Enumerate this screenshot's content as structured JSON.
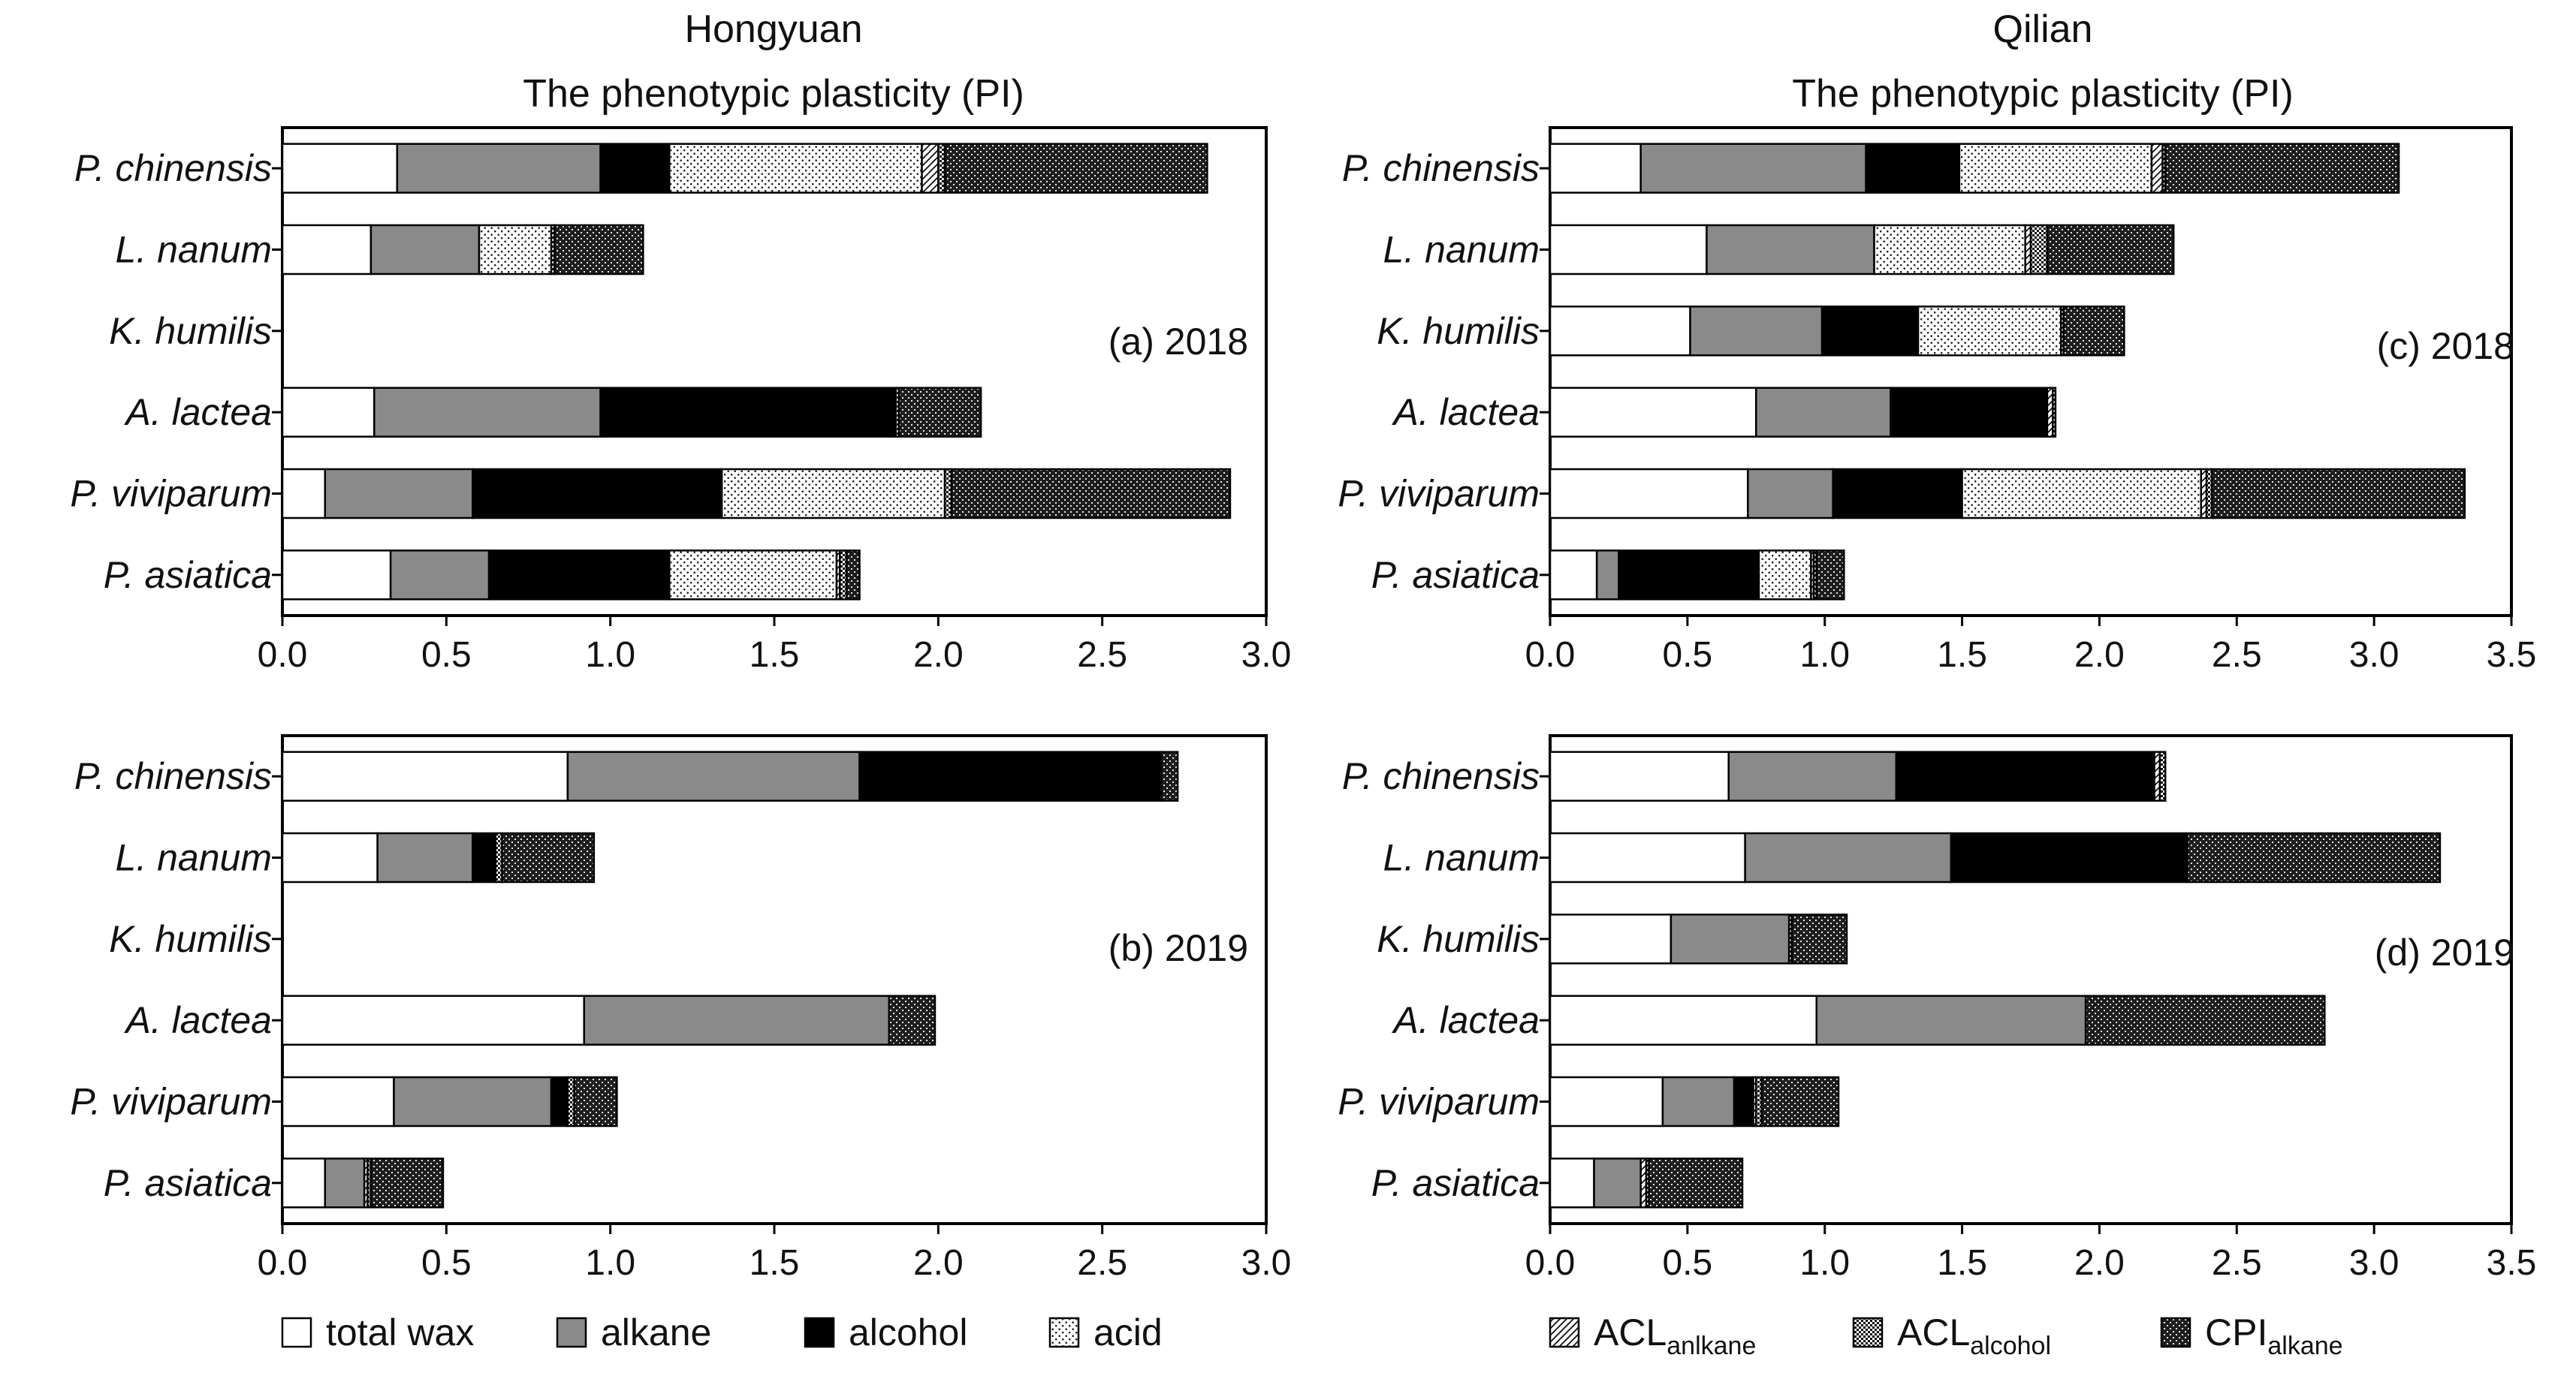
{
  "figure": {
    "components": [
      "total wax",
      "alkane",
      "alcohol",
      "acid",
      "ACL_alkane",
      "ACL_alcohol",
      "CPI_alkane"
    ],
    "fills": {
      "total wax": "#ffffff",
      "alkane": "#8a8a8a",
      "alcohol": "#000000",
      "acid": "dots",
      "ACL_alkane": "diagonal-hatch",
      "ACL_alcohol": "fine-checker",
      "CPI_alkane": "dense-crosshatch"
    },
    "legend": {
      "left": [
        {
          "key": "total wax",
          "label": "total wax"
        },
        {
          "key": "alkane",
          "label": "alkane"
        },
        {
          "key": "alcohol",
          "label": "alcohol"
        },
        {
          "key": "acid",
          "label": "acid"
        }
      ],
      "right": [
        {
          "key": "ACL_alkane",
          "main": "ACL",
          "sub": "anlkane"
        },
        {
          "key": "ACL_alcohol",
          "main": "ACL",
          "sub": "alcohol"
        },
        {
          "key": "CPI_alkane",
          "main": "CPI",
          "sub": "alkane"
        }
      ]
    }
  },
  "chart_data": [
    {
      "id": "a",
      "type": "bar",
      "stacked": true,
      "orientation": "horizontal",
      "title_line1": "Hongyuan",
      "title_line2": "The phenotypic plasticity (PI)",
      "panel_label": "(a) 2018",
      "xlim": [
        0,
        3.0
      ],
      "xticks": [
        "0.0",
        "0.5",
        "1.0",
        "1.5",
        "2.0",
        "2.5",
        "3.0"
      ],
      "categories": [
        "P. chinensis",
        "L. nanum",
        "K. humilis",
        "A. lactea",
        "P. viviparum",
        "P. asiatica"
      ],
      "series": [
        {
          "name": "total wax",
          "values": [
            0.35,
            0.27,
            0,
            0.28,
            0.13,
            0.33
          ]
        },
        {
          "name": "alkane",
          "values": [
            0.62,
            0.33,
            0,
            0.69,
            0.45,
            0.3
          ]
        },
        {
          "name": "alcohol",
          "values": [
            0.21,
            0,
            0,
            0.9,
            0.76,
            0.55
          ]
        },
        {
          "name": "acid",
          "values": [
            0.77,
            0.22,
            0,
            0,
            0.68,
            0.51
          ]
        },
        {
          "name": "ACL_alkane",
          "values": [
            0.05,
            0,
            0,
            0,
            0,
            0.01
          ]
        },
        {
          "name": "ACL_alcohol",
          "values": [
            0.02,
            0.01,
            0,
            0.01,
            0.02,
            0.02
          ]
        },
        {
          "name": "CPI_alkane",
          "values": [
            0.8,
            0.27,
            0,
            0.25,
            0.85,
            0.04
          ]
        }
      ]
    },
    {
      "id": "b",
      "type": "bar",
      "stacked": true,
      "orientation": "horizontal",
      "panel_label": "(b) 2019",
      "xlim": [
        0,
        3.0
      ],
      "xticks": [
        "0.0",
        "0.5",
        "1.0",
        "1.5",
        "2.0",
        "2.5",
        "3.0"
      ],
      "categories": [
        "P. chinensis",
        "L. nanum",
        "K. humilis",
        "A. lactea",
        "P. viviparum",
        "P. asiatica"
      ],
      "series": [
        {
          "name": "total wax",
          "values": [
            0.87,
            0.29,
            0,
            0.92,
            0.34,
            0.13
          ]
        },
        {
          "name": "alkane",
          "values": [
            0.89,
            0.29,
            0,
            0.93,
            0.48,
            0.12
          ]
        },
        {
          "name": "alcohol",
          "values": [
            0.92,
            0.07,
            0,
            0,
            0.05,
            0
          ]
        },
        {
          "name": "acid",
          "values": [
            0,
            0,
            0,
            0,
            0,
            0
          ]
        },
        {
          "name": "ACL_alkane",
          "values": [
            0,
            0,
            0,
            0,
            0,
            0.01
          ]
        },
        {
          "name": "ACL_alcohol",
          "values": [
            0,
            0.02,
            0,
            0,
            0.02,
            0.01
          ]
        },
        {
          "name": "CPI_alkane",
          "values": [
            0.05,
            0.28,
            0,
            0.14,
            0.13,
            0.22
          ]
        }
      ]
    },
    {
      "id": "c",
      "type": "bar",
      "stacked": true,
      "orientation": "horizontal",
      "title_line1": "Qilian",
      "title_line2": "The phenotypic plasticity (PI)",
      "panel_label": "(c) 2018",
      "xlim": [
        0,
        3.5
      ],
      "xticks": [
        "0.0",
        "0.5",
        "1.0",
        "1.5",
        "2.0",
        "2.5",
        "3.0",
        "3.5"
      ],
      "categories": [
        "P. chinensis",
        "L. nanum",
        "K. humilis",
        "A. lactea",
        "P. viviparum",
        "P. asiatica"
      ],
      "series": [
        {
          "name": "total wax",
          "values": [
            0.33,
            0.57,
            0.51,
            0.75,
            0.72,
            0.17
          ]
        },
        {
          "name": "alkane",
          "values": [
            0.82,
            0.61,
            0.48,
            0.49,
            0.31,
            0.08
          ]
        },
        {
          "name": "alcohol",
          "values": [
            0.34,
            0,
            0.35,
            0.57,
            0.47,
            0.51
          ]
        },
        {
          "name": "acid",
          "values": [
            0.7,
            0.55,
            0.52,
            0,
            0.87,
            0.19
          ]
        },
        {
          "name": "ACL_alkane",
          "values": [
            0.04,
            0.02,
            0,
            0.02,
            0.02,
            0.01
          ]
        },
        {
          "name": "ACL_alcohol",
          "values": [
            0.01,
            0.06,
            0.01,
            0.01,
            0.02,
            0.01
          ]
        },
        {
          "name": "CPI_alkane",
          "values": [
            0.85,
            0.46,
            0.22,
            0,
            0.92,
            0.1
          ]
        }
      ]
    },
    {
      "id": "d",
      "type": "bar",
      "stacked": true,
      "orientation": "horizontal",
      "panel_label": "(d) 2019",
      "xlim": [
        0,
        3.5
      ],
      "xticks": [
        "0.0",
        "0.5",
        "1.0",
        "1.5",
        "2.0",
        "2.5",
        "3.0",
        "3.5"
      ],
      "categories": [
        "P. chinensis",
        "L. nanum",
        "K. humilis",
        "A. lactea",
        "P. viviparum",
        "P. asiatica"
      ],
      "series": [
        {
          "name": "total wax",
          "values": [
            0.65,
            0.71,
            0.44,
            0.97,
            0.41,
            0.16
          ]
        },
        {
          "name": "alkane",
          "values": [
            0.61,
            0.75,
            0.43,
            0.98,
            0.26,
            0.17
          ]
        },
        {
          "name": "alcohol",
          "values": [
            0.94,
            0.86,
            0,
            0,
            0.07,
            0
          ]
        },
        {
          "name": "acid",
          "values": [
            0,
            0,
            0,
            0,
            0,
            0
          ]
        },
        {
          "name": "ACL_alkane",
          "values": [
            0.02,
            0,
            0,
            0,
            0.01,
            0.02
          ]
        },
        {
          "name": "ACL_alcohol",
          "values": [
            0.02,
            0,
            0.01,
            0,
            0.02,
            0.01
          ]
        },
        {
          "name": "CPI_alkane",
          "values": [
            0,
            0.92,
            0.2,
            0.87,
            0.28,
            0.34
          ]
        }
      ]
    }
  ]
}
